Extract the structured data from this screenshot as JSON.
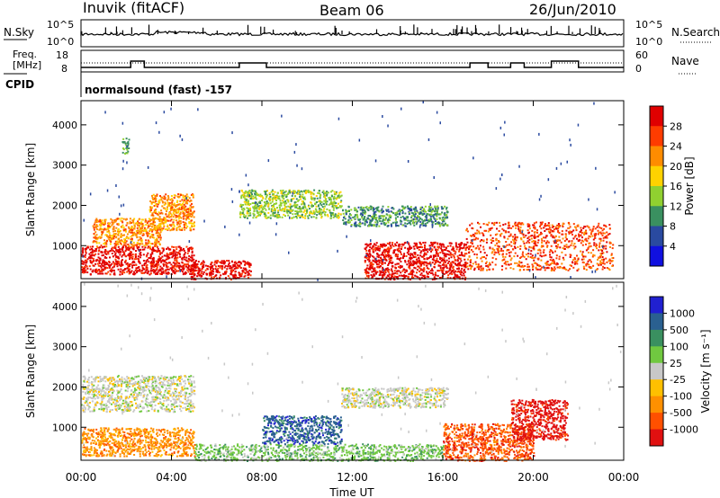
{
  "header": {
    "station": "Inuvik (fitACF)",
    "beam": "Beam 06",
    "date": "26/Jun/2010"
  },
  "panels": {
    "nsky": {
      "left_label": "N.Sky",
      "left_ticks": [
        "10^5",
        "10^0"
      ],
      "right_label": "N.Search",
      "right_ticks": [
        "10^5",
        "10^0"
      ]
    },
    "freq": {
      "left_label_1": "Freq.",
      "left_label_2": "[MHz]",
      "left_ticks": [
        "18",
        "8"
      ],
      "right_label": "Nave",
      "right_ticks": [
        "60",
        "0"
      ]
    },
    "cpid": {
      "label": "CPID",
      "text": "normalsound (fast) -157"
    }
  },
  "axes": {
    "ylabel": "Slant Range [km]",
    "yticks": [
      "1000",
      "2000",
      "3000",
      "4000"
    ],
    "xticks": [
      "00:00",
      "04:00",
      "08:00",
      "12:00",
      "16:00",
      "20:00",
      "00:00"
    ],
    "xlabel": "Time UT"
  },
  "power_scale": {
    "title": "Power [dB]",
    "labels": [
      "28",
      "24",
      "20",
      "16",
      "12",
      "8",
      "4"
    ],
    "colors": [
      "#e00000",
      "#ff3c00",
      "#ff8c00",
      "#ffd200",
      "#90d030",
      "#3a9060",
      "#2a4aa0",
      "#1010e0"
    ]
  },
  "velocity_scale": {
    "title": "Velocity [m s⁻¹]",
    "labels": [
      "1000",
      "500",
      "100",
      "25",
      "-25",
      "-100",
      "-500",
      "-1000"
    ],
    "colors": [
      "#2020d0",
      "#2a6090",
      "#3a9060",
      "#70c840",
      "#c8c8c8",
      "#ffc000",
      "#ff9000",
      "#ff5000",
      "#e01010"
    ]
  },
  "chart_data": [
    {
      "type": "heatmap",
      "title": "Power [dB]",
      "xlabel": "Time UT",
      "ylabel": "Slant Range [km]",
      "x_range_hours": [
        0,
        24
      ],
      "ylim": [
        180,
        4600
      ],
      "levels": [
        4,
        8,
        12,
        16,
        20,
        24,
        28
      ],
      "regions": [
        {
          "t": [
            0,
            5
          ],
          "range": [
            300,
            1000
          ],
          "level": 28
        },
        {
          "t": [
            0.5,
            3.5
          ],
          "range": [
            1000,
            1700
          ],
          "level": 20
        },
        {
          "t": [
            3.0,
            5.0
          ],
          "range": [
            1400,
            2300
          ],
          "level": 20
        },
        {
          "t": [
            1.8,
            2.1
          ],
          "range": [
            3300,
            3700
          ],
          "level": 8
        },
        {
          "t": [
            4.8,
            7.5
          ],
          "range": [
            180,
            650
          ],
          "level": 28
        },
        {
          "t": [
            7,
            11.5
          ],
          "range": [
            1700,
            2400
          ],
          "level": 12
        },
        {
          "t": [
            11.5,
            16.2
          ],
          "range": [
            1500,
            2000
          ],
          "level": 8
        },
        {
          "t": [
            12.5,
            17
          ],
          "range": [
            180,
            1100
          ],
          "level": 28
        },
        {
          "t": [
            17,
            23.5
          ],
          "range": [
            400,
            1600
          ],
          "level": 24
        }
      ]
    },
    {
      "type": "heatmap",
      "title": "Velocity [m s⁻¹]",
      "xlabel": "Time UT",
      "ylabel": "Slant Range [km]",
      "x_range_hours": [
        0,
        24
      ],
      "ylim": [
        180,
        4600
      ],
      "levels": [
        -1000,
        -500,
        -100,
        -25,
        25,
        100,
        500,
        1000
      ],
      "regions": [
        {
          "t": [
            0,
            5
          ],
          "range": [
            300,
            1000
          ],
          "level": -100
        },
        {
          "t": [
            0,
            5
          ],
          "range": [
            1400,
            2300
          ],
          "level": 0
        },
        {
          "t": [
            5,
            16
          ],
          "range": [
            180,
            600
          ],
          "level": 100
        },
        {
          "t": [
            8,
            11.5
          ],
          "range": [
            600,
            1300
          ],
          "level": 500
        },
        {
          "t": [
            11.5,
            16.2
          ],
          "range": [
            1500,
            2000
          ],
          "level": 0
        },
        {
          "t": [
            16,
            20
          ],
          "range": [
            180,
            1100
          ],
          "level": -500
        },
        {
          "t": [
            19,
            21.5
          ],
          "range": [
            700,
            1700
          ],
          "level": -1000
        }
      ]
    }
  ]
}
